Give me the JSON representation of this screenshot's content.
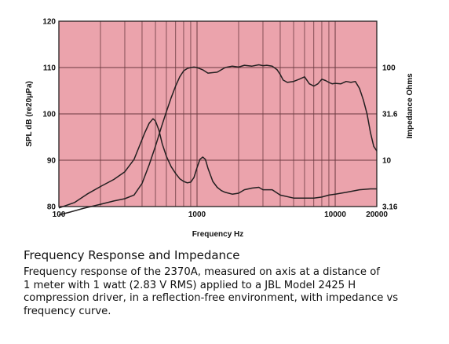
{
  "chart_data": {
    "type": "line",
    "xlabel": "Frequency Hz",
    "ylabel_left": "SPL dB (re20μPa)",
    "ylabel_right": "Impedance Ohms",
    "x_scale": "log",
    "xlim": [
      100,
      20000
    ],
    "x_ticks": [
      100,
      1000,
      10000,
      20000
    ],
    "x_tick_labels": [
      "100",
      "1000",
      "10000",
      "20000"
    ],
    "ylim_left": [
      80,
      120
    ],
    "y_ticks_left": [
      80,
      90,
      100,
      110,
      120
    ],
    "y_tick_labels_left": [
      "80",
      "90",
      "100",
      "110",
      "120"
    ],
    "y_scale_right": "log",
    "ylim_right": [
      3.16,
      316
    ],
    "y_ticks_right": [
      3.16,
      10,
      31.6,
      100
    ],
    "y_tick_labels_right": [
      "3.16",
      "10",
      "31.6",
      "100"
    ],
    "grid": true,
    "legend": "none",
    "colors": {
      "plot_bg": "#eba3ac",
      "grid": "#6b3a40",
      "curve": "#231f20",
      "axis": "#231f20"
    },
    "series": [
      {
        "axis": "left",
        "x": [
          100,
          120,
          150,
          200,
          250,
          300,
          350,
          400,
          450,
          500,
          550,
          600,
          650,
          700,
          750,
          800,
          850,
          900,
          950,
          1000,
          1100,
          1200,
          1400,
          1600,
          1800,
          2000,
          2200,
          2500,
          2800,
          3000,
          3200,
          3500,
          3800,
          4000,
          4200,
          4500,
          5000,
          5500,
          6000,
          6500,
          7000,
          7500,
          8000,
          8500,
          9000,
          9500,
          10000,
          11000,
          12000,
          13000,
          14000,
          15000,
          16000,
          17000,
          18000,
          19000,
          20000
        ],
        "y": [
          78.2,
          78.8,
          79.6,
          80.5,
          81.2,
          81.7,
          82.5,
          85.0,
          89.0,
          93.0,
          97.0,
          100.5,
          103.5,
          106.0,
          108.0,
          109.3,
          109.8,
          110.0,
          110.1,
          110.0,
          109.5,
          108.8,
          109.0,
          110.0,
          110.3,
          110.1,
          110.5,
          110.3,
          110.6,
          110.4,
          110.5,
          110.3,
          109.5,
          108.5,
          107.3,
          106.8,
          107.0,
          107.5,
          108.0,
          106.5,
          106.0,
          106.5,
          107.5,
          107.2,
          106.8,
          106.5,
          106.6,
          106.5,
          107.0,
          106.8,
          107.0,
          105.5,
          103.0,
          100.0,
          96.0,
          93.0,
          92.0
        ]
      },
      {
        "axis": "right",
        "x": [
          100,
          130,
          160,
          200,
          250,
          300,
          350,
          380,
          420,
          450,
          480,
          500,
          530,
          560,
          600,
          650,
          700,
          750,
          800,
          850,
          900,
          950,
          1000,
          1050,
          1100,
          1150,
          1200,
          1300,
          1400,
          1500,
          1600,
          1800,
          2000,
          2200,
          2500,
          2800,
          3000,
          3500,
          4000,
          5000,
          6000,
          7000,
          8000,
          9000,
          10000,
          12000,
          15000,
          18000,
          20000
        ],
        "y": [
          3.05,
          3.5,
          4.3,
          5.2,
          6.2,
          7.5,
          10.2,
          13.8,
          20.0,
          25.0,
          28.0,
          26.5,
          21.0,
          15.0,
          11.0,
          8.5,
          7.2,
          6.3,
          5.9,
          5.7,
          5.8,
          6.5,
          8.3,
          10.2,
          10.8,
          10.2,
          8.2,
          5.9,
          5.1,
          4.7,
          4.5,
          4.3,
          4.4,
          4.8,
          5.0,
          5.1,
          4.8,
          4.8,
          4.2,
          3.9,
          3.9,
          3.9,
          4.0,
          4.2,
          4.3,
          4.5,
          4.8,
          4.9,
          4.9
        ]
      }
    ]
  },
  "caption": {
    "title": "Frequency Response and Impedance",
    "line1": "Frequency response of the 2370A, measured on axis at a distance of",
    "line2": "1 meter with 1 watt (2.83 V RMS) applied to a JBL Model 2425 H",
    "line3": "compression driver, in a reflection-free environment, with impedance vs",
    "line4": "frequency curve."
  }
}
